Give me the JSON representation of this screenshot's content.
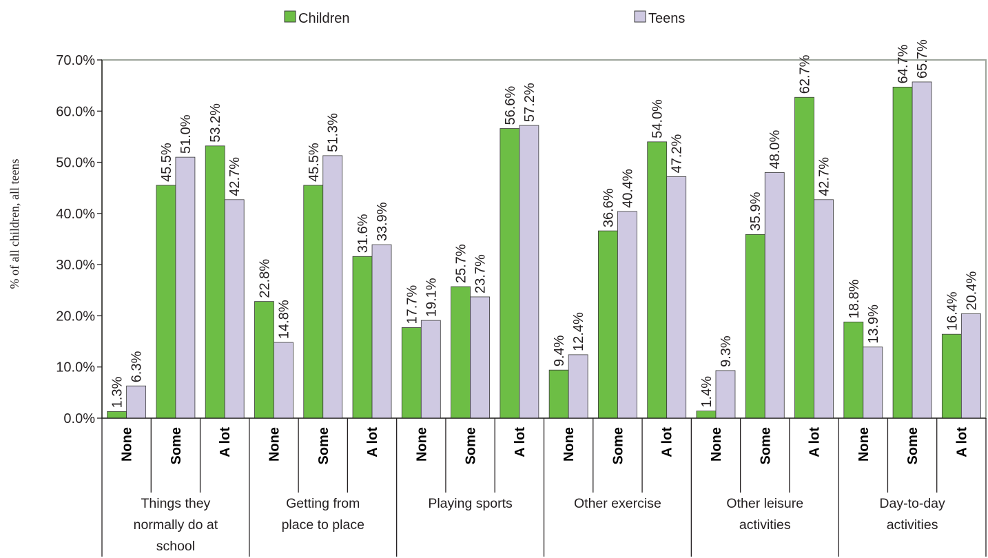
{
  "colors": {
    "children": "#6dbe45",
    "teens": "#cfc9e2",
    "frame": "#9ea59c",
    "bar_stroke": "#3a3a3a"
  },
  "legend": [
    {
      "name": "Children",
      "color": "#6dbe45"
    },
    {
      "name": "Teens",
      "color": "#cfc9e2"
    }
  ],
  "chart_data": {
    "type": "bar",
    "ylabel": "% of all children, all teens",
    "xlabel": "",
    "ylim": [
      0,
      70
    ],
    "yticks": [
      "0.0%",
      "10.0%",
      "20.0%",
      "30.0%",
      "40.0%",
      "50.0%",
      "60.0%",
      "70.0%"
    ],
    "groups": [
      {
        "label_lines": [
          "Things they",
          "normally do at",
          "school"
        ],
        "subcategories": [
          "None",
          "Some",
          "A lot"
        ]
      },
      {
        "label_lines": [
          "Getting from",
          "place to place"
        ],
        "subcategories": [
          "None",
          "Some",
          "A lot"
        ]
      },
      {
        "label_lines": [
          "Playing sports"
        ],
        "subcategories": [
          "None",
          "Some",
          "A lot"
        ]
      },
      {
        "label_lines": [
          "Other exercise"
        ],
        "subcategories": [
          "None",
          "Some",
          "A lot"
        ]
      },
      {
        "label_lines": [
          "Other leisure",
          "activities"
        ],
        "subcategories": [
          "None",
          "Some",
          "A lot"
        ]
      },
      {
        "label_lines": [
          "Day-to-day",
          "activities"
        ],
        "subcategories": [
          "None",
          "Some",
          "A lot"
        ]
      }
    ],
    "series": [
      {
        "name": "Children",
        "values": [
          1.3,
          45.5,
          53.2,
          22.8,
          45.5,
          31.6,
          17.7,
          25.7,
          56.6,
          9.4,
          36.6,
          54.0,
          1.4,
          35.9,
          62.7,
          18.8,
          64.7,
          16.4
        ],
        "labels": [
          "1.3%",
          "45.5%",
          "53.2%",
          "22.8%",
          "45.5%",
          "31.6%",
          "17.7%",
          "25.7%",
          "56.6%",
          "9.4%",
          "36.6%",
          "54.0%",
          "1.4%",
          "35.9%",
          "62.7%",
          "18.8%",
          "64.7%",
          "16.4%"
        ]
      },
      {
        "name": "Teens",
        "values": [
          6.3,
          51.0,
          42.7,
          14.8,
          51.3,
          33.9,
          19.1,
          23.7,
          57.2,
          12.4,
          40.4,
          47.2,
          9.3,
          48.0,
          42.7,
          13.9,
          65.7,
          20.4
        ],
        "labels": [
          "6.3%",
          "51.0%",
          "42.7%",
          "14.8%",
          "51.3%",
          "33.9%",
          "19.1%",
          "23.7%",
          "57.2%",
          "12.4%",
          "40.4%",
          "47.2%",
          "9.3%",
          "48.0%",
          "42.7%",
          "13.9%",
          "65.7%",
          "20.4%"
        ]
      }
    ],
    "grid": false,
    "legend_position": "top"
  }
}
